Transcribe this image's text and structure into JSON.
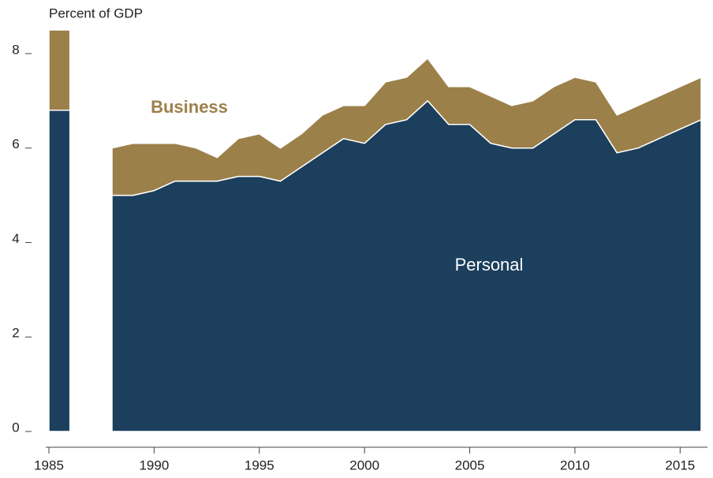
{
  "chart_data": {
    "type": "stacked_area",
    "y_axis_label": "Percent of GDP",
    "x": [
      1985,
      1986,
      1987,
      1988,
      1989,
      1990,
      1991,
      1992,
      1993,
      1994,
      1995,
      1996,
      1997,
      1998,
      1999,
      2000,
      2001,
      2002,
      2003,
      2004,
      2005,
      2006,
      2007,
      2008,
      2009,
      2010,
      2011,
      2012,
      2013,
      2014,
      2015,
      2016
    ],
    "series": [
      {
        "name": "Personal",
        "color": "#1b3f5c",
        "values": [
          6.8,
          6.8,
          null,
          5.0,
          5.0,
          5.1,
          5.3,
          5.3,
          5.3,
          5.4,
          5.4,
          5.3,
          5.6,
          5.9,
          6.2,
          6.1,
          6.5,
          6.6,
          7.0,
          6.5,
          6.5,
          6.1,
          6.0,
          6.0,
          6.3,
          6.6,
          6.6,
          5.9,
          6.0,
          6.2,
          6.4,
          6.6
        ]
      },
      {
        "name": "Business",
        "color": "#9c804a",
        "values": [
          1.7,
          1.7,
          null,
          1.0,
          1.1,
          1.0,
          0.8,
          0.7,
          0.5,
          0.8,
          0.9,
          0.7,
          0.7,
          0.8,
          0.7,
          0.8,
          0.9,
          0.9,
          0.9,
          0.8,
          0.8,
          1.0,
          0.9,
          1.0,
          1.0,
          0.9,
          0.8,
          0.8,
          0.9,
          0.9,
          0.9,
          0.9
        ]
      }
    ],
    "xlim": [
      1985,
      2016
    ],
    "xticks": [
      1985,
      1990,
      1995,
      2000,
      2005,
      2010,
      2015
    ],
    "ylim": [
      0,
      8.6
    ],
    "yticks": [
      0,
      2,
      4,
      6,
      8
    ]
  }
}
